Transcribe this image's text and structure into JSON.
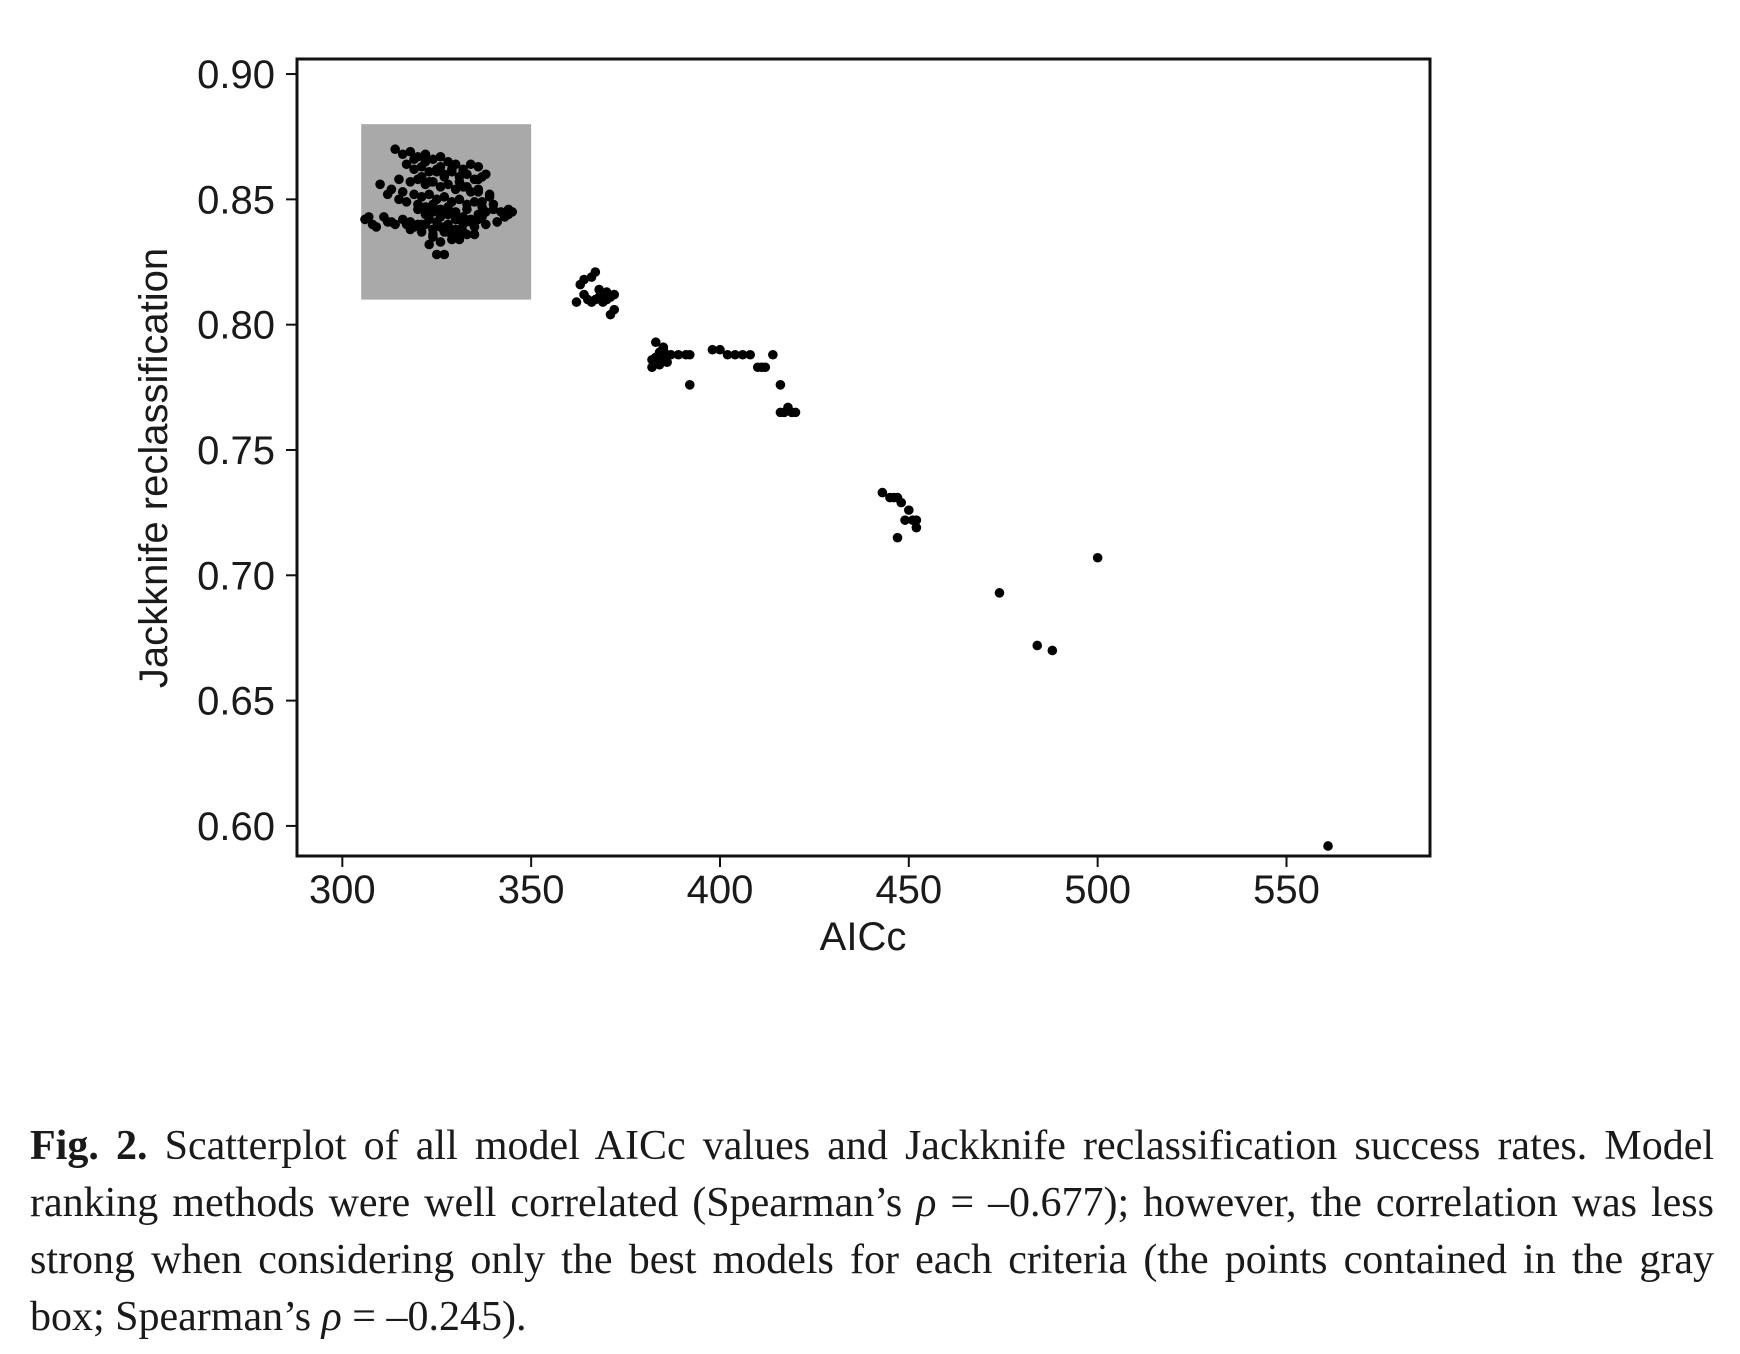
{
  "chart_data": {
    "type": "scatter",
    "xlabel": "AICc",
    "ylabel": "Jackknife reclassification",
    "xlim": [
      288,
      588
    ],
    "ylim": [
      0.588,
      0.906
    ],
    "x_ticks": [
      "300",
      "350",
      "400",
      "450",
      "500",
      "550"
    ],
    "x_tick_values": [
      300,
      350,
      400,
      450,
      500,
      550
    ],
    "y_ticks": [
      "0.60",
      "0.65",
      "0.70",
      "0.75",
      "0.80",
      "0.85",
      "0.90"
    ],
    "y_tick_values": [
      0.6,
      0.65,
      0.7,
      0.75,
      0.8,
      0.85,
      0.9
    ],
    "grid": false,
    "highlight_box": {
      "x": [
        305,
        350
      ],
      "y": [
        0.81,
        0.88
      ],
      "color": "#a9a9a9"
    },
    "point_color": "#000000",
    "series": [
      {
        "x": [
          314,
          316,
          318,
          320,
          322,
          324,
          326,
          328,
          330,
          332,
          334,
          336,
          338,
          317,
          319,
          321,
          323,
          325,
          327,
          329,
          331,
          333,
          335,
          337,
          315,
          318,
          320,
          322,
          324,
          326,
          328,
          330,
          332,
          334,
          336,
          339,
          313,
          316,
          319,
          321,
          323,
          325,
          327,
          329,
          331,
          333,
          335,
          337,
          340,
          310,
          312,
          315,
          317,
          320,
          322,
          324,
          326,
          328,
          330,
          333,
          336,
          338,
          320,
          322,
          324,
          326,
          328,
          330,
          332,
          334,
          336,
          306,
          308,
          311,
          313,
          316,
          318,
          320,
          323,
          325,
          328,
          331,
          334,
          337,
          341,
          343,
          345,
          322,
          324,
          326,
          328,
          330,
          333,
          307,
          309,
          312,
          314,
          317,
          319,
          321,
          324,
          327,
          330,
          332,
          335,
          338,
          318,
          321,
          324,
          327,
          330,
          332,
          325,
          327,
          326,
          324,
          323,
          329,
          331,
          335,
          340,
          342,
          344,
          321,
          323,
          325,
          327,
          331,
          333,
          336,
          339,
          319,
          322,
          326,
          329,
          332,
          336,
          328,
          334,
          337,
          341,
          344
        ],
        "y": [
          0.87,
          0.868,
          0.869,
          0.867,
          0.868,
          0.866,
          0.867,
          0.865,
          0.864,
          0.862,
          0.864,
          0.863,
          0.86,
          0.864,
          0.862,
          0.863,
          0.861,
          0.862,
          0.86,
          0.861,
          0.859,
          0.86,
          0.858,
          0.859,
          0.858,
          0.857,
          0.858,
          0.856,
          0.857,
          0.855,
          0.856,
          0.854,
          0.855,
          0.853,
          0.854,
          0.852,
          0.854,
          0.853,
          0.852,
          0.851,
          0.852,
          0.85,
          0.851,
          0.849,
          0.85,
          0.848,
          0.849,
          0.847,
          0.848,
          0.856,
          0.852,
          0.85,
          0.849,
          0.848,
          0.847,
          0.848,
          0.846,
          0.847,
          0.845,
          0.846,
          0.844,
          0.845,
          0.846,
          0.844,
          0.845,
          0.843,
          0.844,
          0.842,
          0.843,
          0.841,
          0.842,
          0.842,
          0.84,
          0.843,
          0.841,
          0.842,
          0.841,
          0.84,
          0.842,
          0.841,
          0.84,
          0.842,
          0.841,
          0.843,
          0.841,
          0.843,
          0.845,
          0.84,
          0.838,
          0.839,
          0.837,
          0.838,
          0.836,
          0.843,
          0.839,
          0.841,
          0.84,
          0.84,
          0.839,
          0.84,
          0.838,
          0.839,
          0.838,
          0.84,
          0.839,
          0.84,
          0.838,
          0.837,
          0.836,
          0.837,
          0.836,
          0.837,
          0.828,
          0.828,
          0.833,
          0.835,
          0.832,
          0.834,
          0.834,
          0.836,
          0.846,
          0.845,
          0.846,
          0.859,
          0.857,
          0.861,
          0.859,
          0.857,
          0.855,
          0.853,
          0.851,
          0.866,
          0.865,
          0.863,
          0.862,
          0.861,
          0.858,
          0.844,
          0.842,
          0.849,
          0.841,
          0.844
        ]
      },
      {
        "x": [
          362,
          364,
          365,
          366,
          367,
          368,
          369,
          370,
          371,
          372,
          364,
          366,
          368,
          370,
          372,
          363,
          367,
          371,
          382,
          383,
          384,
          385,
          386,
          382,
          384,
          386,
          383,
          385,
          387,
          384,
          389,
          392,
          392,
          391,
          398,
          400,
          402,
          404,
          406,
          408,
          410,
          412,
          414,
          411,
          416,
          417,
          416,
          418,
          419,
          420
        ],
        "y": [
          0.809,
          0.812,
          0.81,
          0.809,
          0.81,
          0.811,
          0.809,
          0.81,
          0.811,
          0.812,
          0.818,
          0.819,
          0.814,
          0.813,
          0.806,
          0.816,
          0.821,
          0.804,
          0.783,
          0.787,
          0.789,
          0.791,
          0.788,
          0.786,
          0.784,
          0.785,
          0.793,
          0.79,
          0.788,
          0.787,
          0.788,
          0.788,
          0.776,
          0.788,
          0.79,
          0.79,
          0.788,
          0.788,
          0.788,
          0.788,
          0.783,
          0.783,
          0.788,
          0.783,
          0.776,
          0.765,
          0.765,
          0.767,
          0.765,
          0.765
        ]
      },
      {
        "x": [
          443,
          445,
          446,
          447,
          448,
          450,
          451,
          452,
          452,
          449,
          447
        ],
        "y": [
          0.733,
          0.731,
          0.731,
          0.731,
          0.729,
          0.726,
          0.722,
          0.719,
          0.722,
          0.722,
          0.715
        ]
      },
      {
        "x": [
          474,
          484,
          488,
          500,
          561
        ],
        "y": [
          0.693,
          0.672,
          0.67,
          0.707,
          0.592
        ]
      }
    ]
  },
  "caption": {
    "label": "Fig. 2.",
    "part1": "Scatterplot of all model AICc values and Jackknife reclassification success rates. Model ranking methods were well correlated (Spearman’s ",
    "rho1": "ρ",
    "part2": " = –0.677); however, the correlation was less strong when considering only the best models for each criteria (the points contained in the gray box; Spearman’s ",
    "rho2": "ρ",
    "part3": " = –0.245)."
  }
}
